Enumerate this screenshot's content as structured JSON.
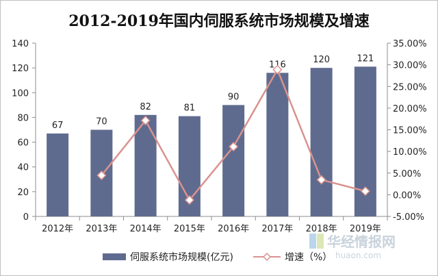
{
  "chart_data": {
    "type": "bar",
    "title": "2012-2019年国内伺服系统市场规模及增速",
    "categories": [
      "2012年",
      "2013年",
      "2014年",
      "2015年",
      "2016年",
      "2017年",
      "2018年",
      "2019年"
    ],
    "series": [
      {
        "name": "伺服系统市场规模(亿元)",
        "type": "bar",
        "axis": "left",
        "color": "#5f6b8e",
        "values": [
          67,
          70,
          82,
          81,
          90,
          116,
          120,
          121
        ],
        "data_labels": [
          "67",
          "70",
          "82",
          "81",
          "90",
          "116",
          "120",
          "121"
        ]
      },
      {
        "name": "增速（%）",
        "type": "line",
        "axis": "right",
        "color": "#d9928e",
        "marker": "diamond",
        "values": [
          null,
          4.48,
          17.14,
          -1.22,
          11.11,
          28.89,
          3.45,
          0.83
        ]
      }
    ],
    "y_left": {
      "min": 0,
      "max": 140,
      "step": 20,
      "ticks": [
        "0",
        "20",
        "40",
        "60",
        "80",
        "100",
        "120",
        "140"
      ]
    },
    "y_right": {
      "min": -5,
      "max": 35,
      "step": 5,
      "ticks": [
        "-5.00%",
        "0.00%",
        "5.00%",
        "10.00%",
        "15.00%",
        "20.00%",
        "25.00%",
        "30.00%",
        "35.00%"
      ]
    },
    "grid": false,
    "legend": "bottom"
  },
  "watermark": {
    "text": "华经情报网",
    "sub": "huaon.com"
  }
}
